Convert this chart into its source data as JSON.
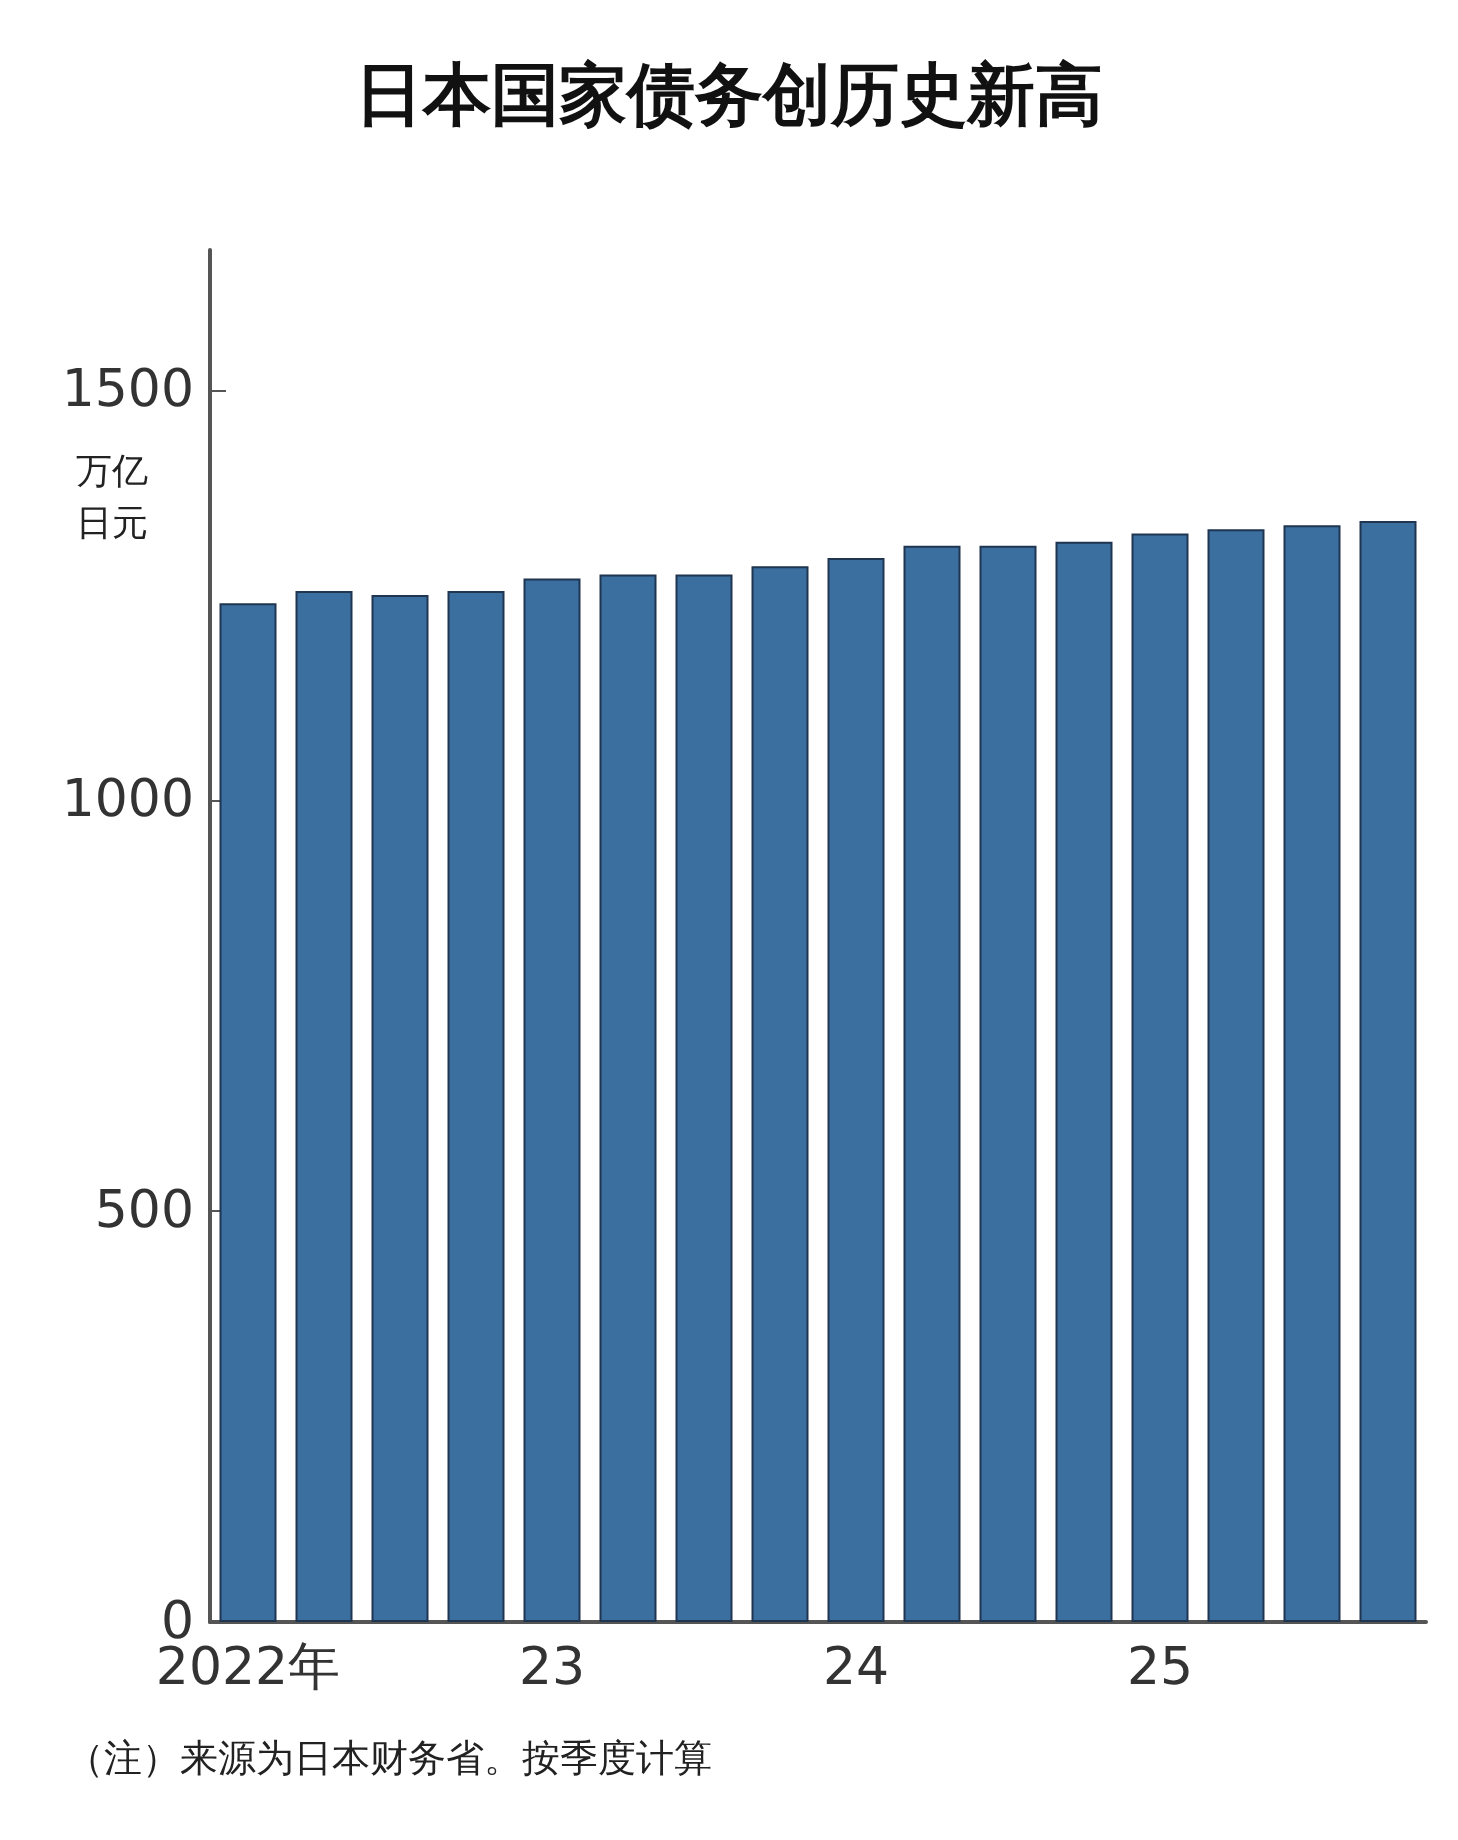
{
  "chart_data": {
    "type": "bar",
    "title": "日本国家债务创历史新高",
    "ylabel": "万亿日元",
    "categories": [
      "2022年",
      null,
      null,
      null,
      "23",
      null,
      null,
      null,
      "24",
      null,
      null,
      null,
      "25",
      null,
      null,
      null
    ],
    "values": [
      1240,
      1255,
      1250,
      1255,
      1270,
      1275,
      1275,
      1285,
      1295,
      1310,
      1310,
      1315,
      1325,
      1330,
      1335,
      1340
    ],
    "color": "#3a6fa0",
    "ylim": [
      0,
      1670
    ],
    "yticks": [
      0,
      500,
      1000,
      1500
    ],
    "grid": false,
    "annotations": [
      "（注）来源为日本财务省。按季度计算"
    ]
  }
}
